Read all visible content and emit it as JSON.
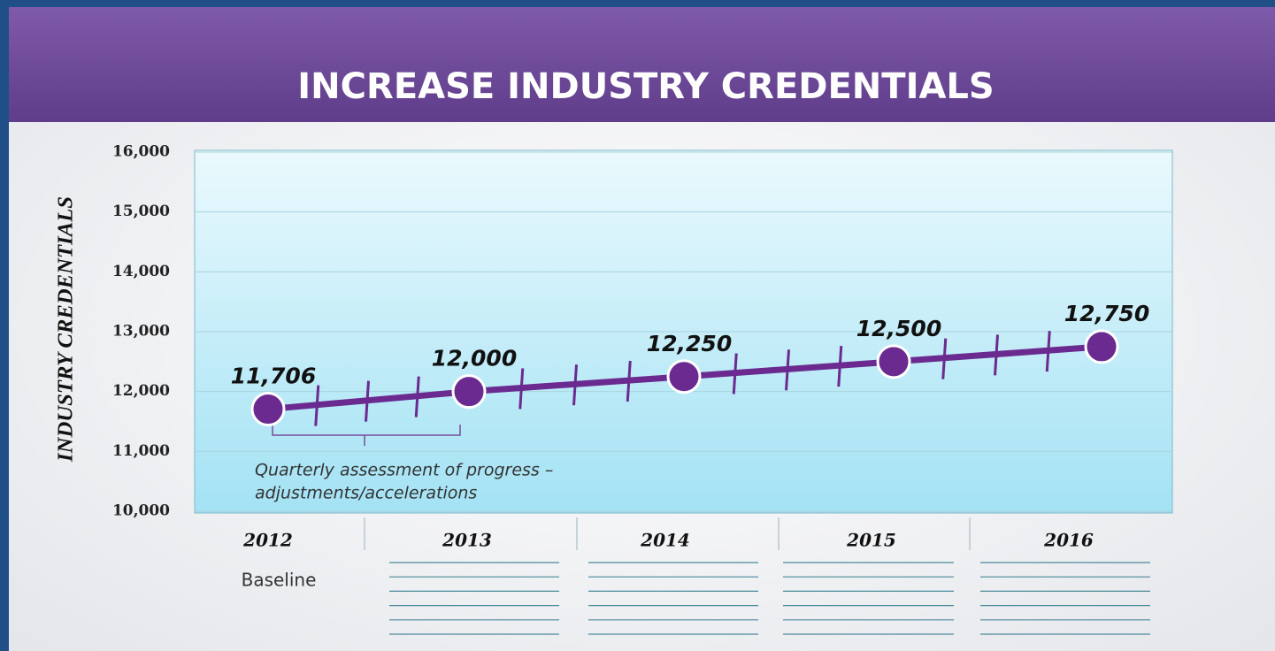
{
  "chart_data": {
    "type": "line",
    "title": "INCREASE INDUSTRY CREDENTIALS",
    "ylabel": "INDUSTRY CREDENTIALS",
    "categories": [
      "2012",
      "2013",
      "2014",
      "2015",
      "2016"
    ],
    "values": [
      11706,
      12000,
      12250,
      12500,
      12750
    ],
    "value_labels": [
      "11,706",
      "12,000",
      "12,250",
      "12,500",
      "12,750"
    ],
    "color": "#6b2a8f",
    "ylim": [
      10000,
      16000
    ],
    "yticks": [
      {
        "value": 10000,
        "label": "10,000"
      },
      {
        "value": 11000,
        "label": "11,000"
      },
      {
        "value": 12000,
        "label": "12,000"
      },
      {
        "value": 13000,
        "label": "13,000"
      },
      {
        "value": 14000,
        "label": "14,000"
      },
      {
        "value": 15000,
        "label": "15,000"
      },
      {
        "value": 16000,
        "label": "16,000"
      }
    ],
    "grid": true,
    "annotation": [
      "Quarterly assessment of progress –",
      "adjustments/accelerations"
    ],
    "baseline_label": "Baseline"
  }
}
